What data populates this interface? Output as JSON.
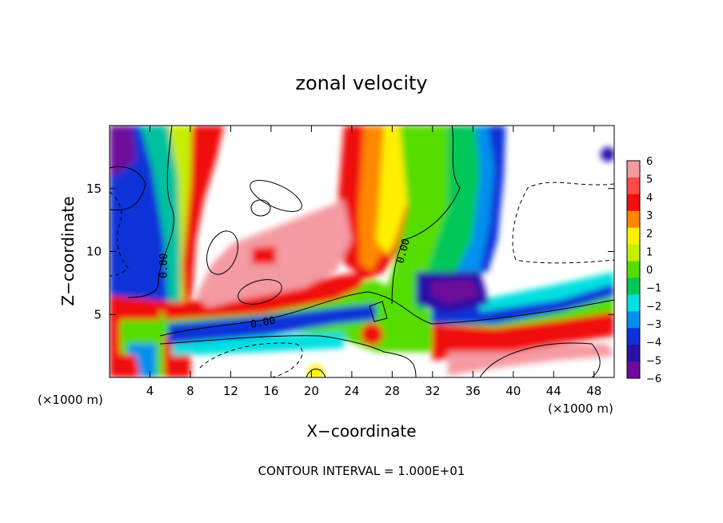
{
  "chart_data": {
    "type": "heatmap",
    "title": "zonal velocity",
    "xlabel": "X−coordinate",
    "ylabel": "Z−coordinate",
    "x_unit_label": "(×1000 m)",
    "z_unit_label": "(×1000 m)",
    "footer": "CONTOUR INTERVAL = 1.000E+01",
    "xlim": [
      0,
      50
    ],
    "ylim": [
      0,
      20
    ],
    "x_ticks": [
      "4",
      "8",
      "12",
      "16",
      "20",
      "24",
      "28",
      "32",
      "36",
      "40",
      "44",
      "48"
    ],
    "y_ticks": [
      "5",
      "10",
      "15"
    ],
    "colorbar_labels": [
      "6",
      "5",
      "4",
      "3",
      "2",
      "1",
      "0",
      "−1",
      "−2",
      "−3",
      "−4",
      "−5",
      "−6"
    ],
    "colorbar_colors": [
      "#f49aa2",
      "#fb4a48",
      "#f01010",
      "#ff8800",
      "#fff000",
      "#c6ee00",
      "#55dd00",
      "#00c858",
      "#00e0e0",
      "#0090ef",
      "#1030d8",
      "#2a0fa8",
      "#6e0c9a"
    ],
    "contour_labels": [
      "0.00",
      "0.00",
      "0.00"
    ],
    "grid": false,
    "legend": "right colorbar"
  }
}
